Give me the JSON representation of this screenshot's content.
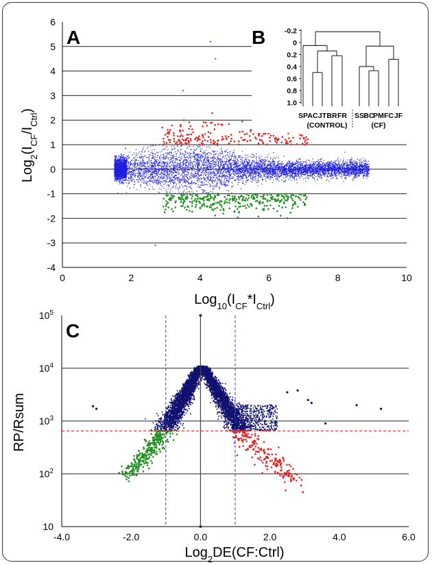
{
  "chart_data": [
    {
      "panel": "A",
      "type": "scatter",
      "xlabel_parts": [
        "Log",
        "10",
        "(I",
        "CF",
        "*I",
        "Ctrl",
        ")"
      ],
      "ylabel_parts": [
        "Log",
        "2",
        "(I",
        "CF",
        "/I",
        "Ctrl",
        ")"
      ],
      "xlim": [
        0,
        10
      ],
      "ylim": [
        -4,
        6
      ],
      "xticks": [
        "0",
        "2",
        "4",
        "6",
        "8",
        "10"
      ],
      "yticks": [
        "-4",
        "-3",
        "-2",
        "-1",
        "0",
        "1",
        "2",
        "3",
        "4",
        "5",
        "6"
      ],
      "gridlines_y": [
        -3,
        -2,
        -1,
        0,
        1,
        2,
        3,
        4,
        5
      ],
      "series": [
        {
          "color": "#1f1fe0",
          "values": "dense cloud, x 1.5 to 9, y -1 to 1"
        },
        {
          "color": "#e82020",
          "values": "up-regulated points, x 2.9 to 7.2, y 1 to 2.6"
        },
        {
          "color": "#1f8f1f",
          "values": "down-regulated points, x 2.9 to 7.1, y -1 to -2.4"
        }
      ]
    },
    {
      "panel": "B",
      "type": "dendrogram",
      "yticks": [
        "-0.2",
        "0",
        "0.2",
        "0.4",
        "0.6",
        "0.8",
        "1.0"
      ],
      "leaves": [
        "SP",
        "AC",
        "JT",
        "BR",
        "FR",
        "SS",
        "BC",
        "PM",
        "FC",
        "JF"
      ],
      "groups": [
        "(CONTROL)",
        "(CF)"
      ]
    },
    {
      "panel": "C",
      "type": "scatter",
      "xlabel_parts": [
        "Log",
        "2",
        "DE(CF:Ctrl)"
      ],
      "ylabel": "RP/Rsum",
      "xlim": [
        -4,
        6
      ],
      "ylim_log10": [
        1,
        5
      ],
      "xticks": [
        "-4.0",
        "-2.0",
        "0.0",
        "2.0",
        "4.0",
        "6.0"
      ],
      "yticks": [
        {
          "base": "10",
          "exp": ""
        },
        {
          "base": "10",
          "exp": "2"
        },
        {
          "base": "10",
          "exp": "3"
        },
        {
          "base": "10",
          "exp": "4"
        },
        {
          "base": "10",
          "exp": "5"
        }
      ],
      "vlines": [
        -1,
        1
      ],
      "hline": 650,
      "series": [
        {
          "color": "#10106e",
          "values": "inverted-V cloud, peak near x 0, RP/Rsum 11000"
        },
        {
          "color": "#1f8f1f",
          "values": "x -2.3 to -1, RP/Rsum 80 to 650"
        },
        {
          "color": "#e82020",
          "values": "x 1 to 3, RP/Rsum 40 to 650"
        }
      ],
      "colors": {
        "threshold": "#e82020",
        "cutoff": "#2040e0"
      }
    }
  ]
}
